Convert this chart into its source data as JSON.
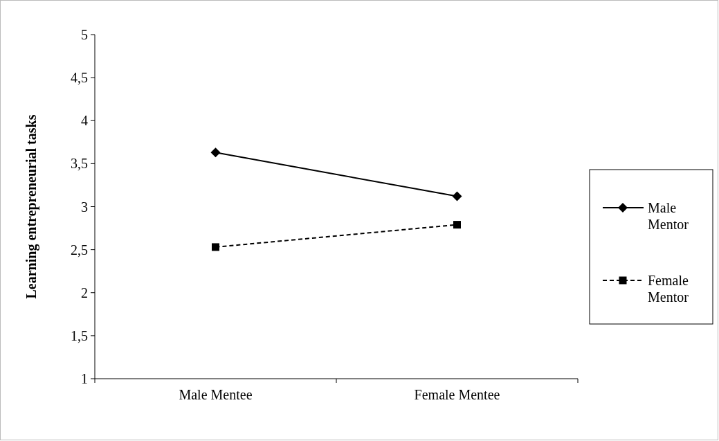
{
  "chart_data": {
    "type": "line",
    "ylabel": "Learning entrepreneurial tasks",
    "categories": [
      "Male Mentee",
      "Female Mentee"
    ],
    "series": [
      {
        "name": "Male Mentor",
        "color": "#000000",
        "values": [
          3.63,
          3.12
        ],
        "marker": "diamond",
        "line_style": "solid"
      },
      {
        "name": "Female Mentor",
        "color": "#000000",
        "values": [
          2.53,
          2.79
        ],
        "marker": "square",
        "line_style": "dashed"
      }
    ],
    "ylim": [
      1,
      5
    ],
    "yticks": [
      1,
      {
        "value": 1.5,
        "label": "1,5"
      },
      2,
      {
        "value": 2.5,
        "label": "2,5"
      },
      3,
      {
        "value": 3.5,
        "label": "3,5"
      },
      4,
      {
        "value": 4.5,
        "label": "4,5"
      },
      5
    ],
    "grid": false,
    "legend": "right"
  }
}
